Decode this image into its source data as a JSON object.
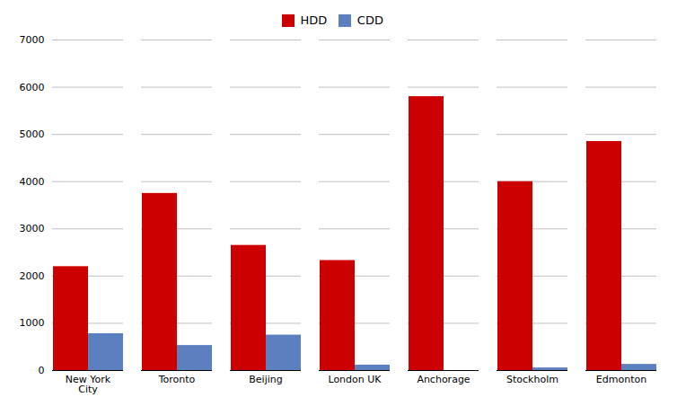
{
  "chart_data": {
    "type": "bar",
    "categories": [
      "New York\nCity",
      "Toronto",
      "Beijing",
      "London UK",
      "Anchorage",
      "Stockholm",
      "Edmonton"
    ],
    "series": [
      {
        "name": "HDD",
        "color": "#CC0000",
        "values": [
          2200,
          3750,
          2650,
          2330,
          5800,
          4000,
          4850
        ]
      },
      {
        "name": "CDD",
        "color": "#5B7FBF",
        "values": [
          780,
          530,
          750,
          115,
          0,
          55,
          130
        ]
      }
    ],
    "ylim": [
      0,
      7000
    ],
    "yticks": [
      0,
      1000,
      2000,
      3000,
      4000,
      5000,
      6000,
      7000
    ],
    "grid": true,
    "legend": "top"
  }
}
